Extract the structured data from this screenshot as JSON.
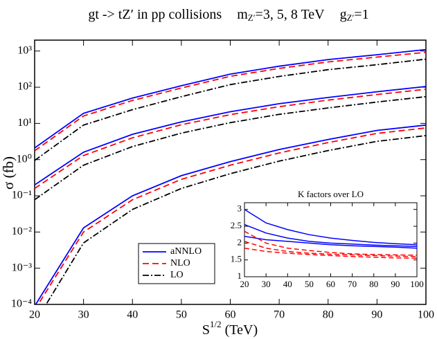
{
  "chart_data": [
    {
      "type": "line",
      "title": "gt -> tZ′  in  pp collisions",
      "mass_label": "m",
      "mass_sub": "Z′",
      "mass_text": "=3, 5, 8 TeV",
      "coupling_label": "g",
      "coupling_sub": "Z′",
      "coupling_text": "=1",
      "x_label": "S",
      "x_label_sup": "1/2",
      "x_label_unit": "(TeV)",
      "y_label": "σ (fb)",
      "log_y": true,
      "x": [
        20,
        30,
        40,
        50,
        60,
        70,
        80,
        90,
        100
      ],
      "xlim": [
        20,
        100
      ],
      "xticks": [
        20,
        30,
        40,
        50,
        60,
        70,
        80,
        90,
        100
      ],
      "ylim": [
        0.0001,
        2000
      ],
      "yticks": [
        {
          "value": 0.0001,
          "label": "10⁻⁴"
        },
        {
          "value": 0.001,
          "label": "10⁻³"
        },
        {
          "value": 0.01,
          "label": "10⁻²"
        },
        {
          "value": 0.1,
          "label": "10⁻¹"
        },
        {
          "value": 1,
          "label": "10⁰"
        },
        {
          "value": 10,
          "label": "10¹"
        },
        {
          "value": 100,
          "label": "10²"
        },
        {
          "value": 1000,
          "label": "10³"
        }
      ],
      "series": [
        {
          "name": "aNNLO",
          "color": "#0000ff",
          "dash": "none",
          "values": [
            [
              2.1,
              19,
              50,
              110,
              230,
              380,
              580,
              790,
              1100
            ],
            [
              0.2,
              1.6,
              5,
              11,
              21,
              35,
              52,
              75,
              105
            ],
            [
              9e-05,
              0.013,
              0.1,
              0.36,
              0.88,
              1.9,
              3.6,
              6.4,
              9
            ]
          ]
        },
        {
          "name": "NLO",
          "color": "#ff0000",
          "dash": "9,5",
          "values": [
            [
              1.75,
              16,
              43,
              95,
              200,
              330,
              500,
              680,
              920
            ],
            [
              0.16,
              1.3,
              4.0,
              9.2,
              17.5,
              29,
              44,
              63,
              88
            ],
            [
              7e-05,
              0.01,
              0.078,
              0.285,
              0.7,
              1.53,
              2.95,
              5.3,
              7.5
            ]
          ]
        },
        {
          "name": "LO",
          "color": "#000000",
          "dash": "9,3,2,3",
          "values": [
            [
              0.95,
              9,
              24,
              55,
              118,
              198,
              305,
              420,
              595
            ],
            [
              0.078,
              0.7,
              2.3,
              5.4,
              10.5,
              17.8,
              26.8,
              39,
              55
            ],
            [
              3e-05,
              0.005,
              0.042,
              0.16,
              0.41,
              0.91,
              1.78,
              3.2,
              4.6
            ]
          ]
        }
      ]
    },
    {
      "type": "line",
      "title": "K factors over LO",
      "x": [
        20,
        30,
        40,
        50,
        60,
        70,
        80,
        90,
        100
      ],
      "xlim": [
        20,
        100
      ],
      "xticks": [
        20,
        30,
        40,
        50,
        60,
        70,
        80,
        90,
        100
      ],
      "ylim": [
        1,
        3.2
      ],
      "yticks": [
        1,
        1.5,
        2,
        2.5,
        3
      ],
      "series": [
        {
          "color": "#0000ff",
          "dash": "none",
          "values": [
            [
              2.2,
              2.1,
              2.05,
              2.0,
              1.95,
              1.92,
              1.9,
              1.88,
              1.85
            ],
            [
              2.55,
              2.3,
              2.15,
              2.05,
              2.0,
              1.97,
              1.94,
              1.92,
              1.9
            ],
            [
              3.0,
              2.6,
              2.4,
              2.25,
              2.15,
              2.08,
              2.02,
              1.98,
              1.95
            ]
          ]
        },
        {
          "color": "#ff0000",
          "dash": "7,4",
          "values": [
            [
              1.85,
              1.75,
              1.7,
              1.66,
              1.63,
              1.6,
              1.58,
              1.56,
              1.55
            ],
            [
              2.05,
              1.85,
              1.75,
              1.7,
              1.67,
              1.65,
              1.63,
              1.61,
              1.6
            ],
            [
              2.35,
              2.0,
              1.85,
              1.78,
              1.72,
              1.68,
              1.66,
              1.65,
              1.64
            ]
          ]
        }
      ]
    }
  ]
}
